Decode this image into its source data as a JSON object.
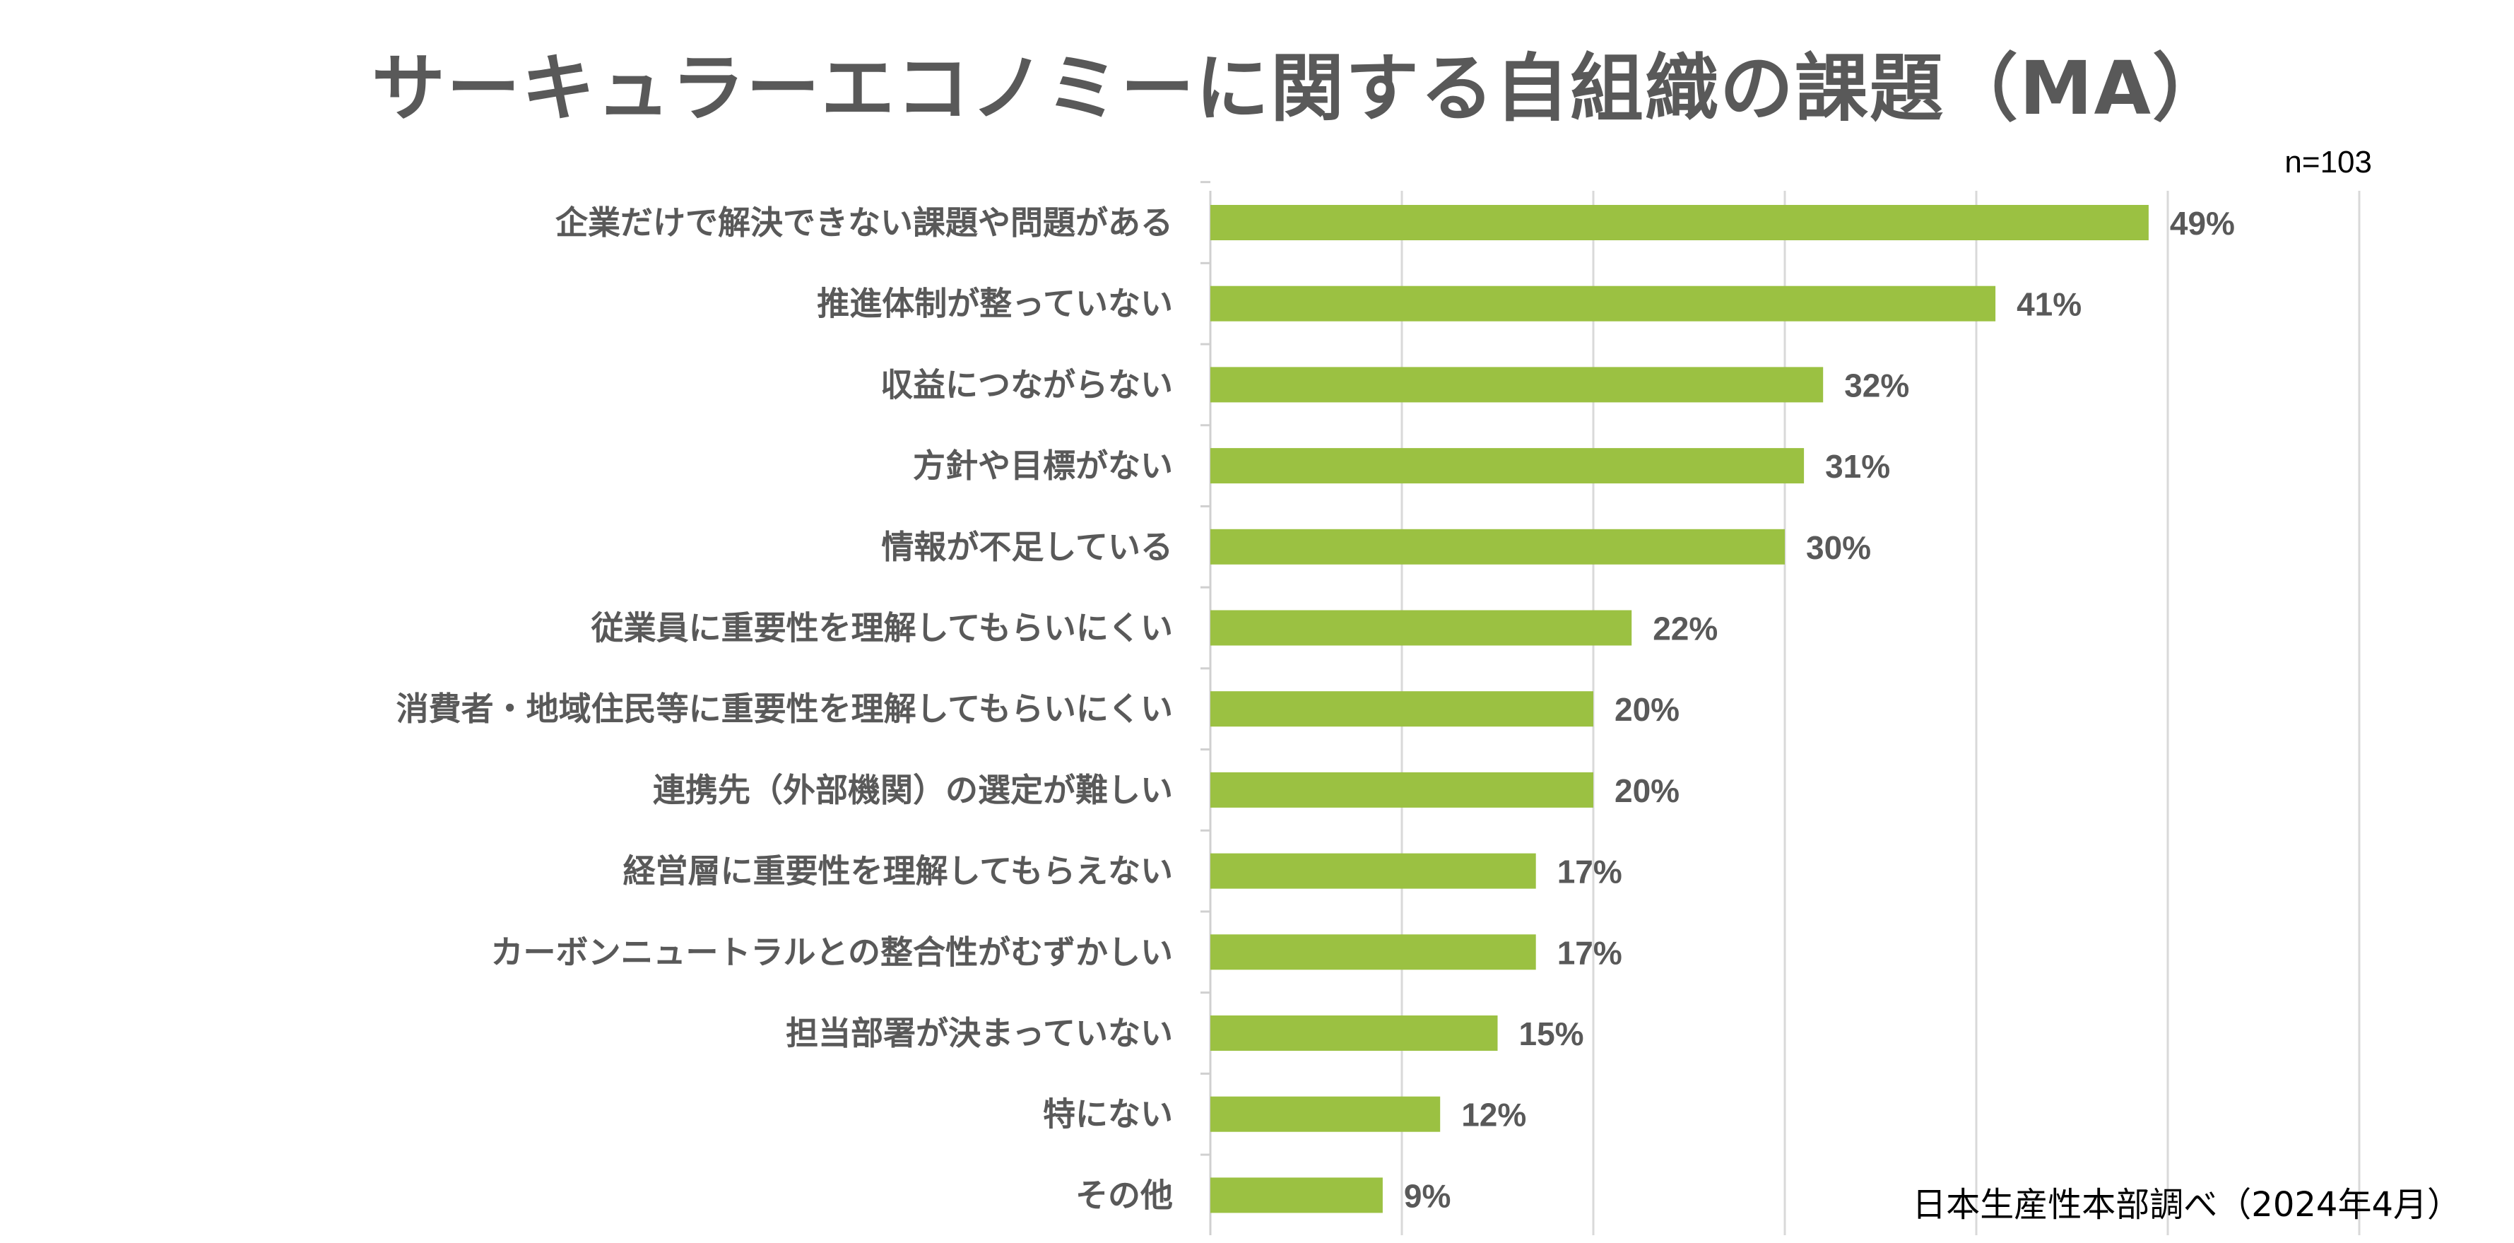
{
  "chart_data": {
    "type": "bar",
    "orientation": "horizontal",
    "title": "サーキュラーエコノミーに関する自組織の課題（MA）",
    "sample_size": "n=103",
    "source": "日本生産性本部調べ（2024年4月）",
    "categories": [
      "企業だけで解決できない課題や問題がある",
      "推進体制が整っていない",
      "収益につながらない",
      "方針や目標がない",
      "情報が不足している",
      "従業員に重要性を理解してもらいにくい",
      "消費者・地域住民等に重要性を理解してもらいにくい",
      "連携先（外部機関）の選定が難しい",
      "経営層に重要性を理解してもらえない",
      "カーボンニュートラルとの整合性がむずかしい",
      "担当部署が決まっていない",
      "特にない",
      "その他"
    ],
    "values": [
      49,
      41,
      32,
      31,
      30,
      22,
      20,
      20,
      17,
      17,
      15,
      12,
      9
    ],
    "value_labels": [
      "49%",
      "41%",
      "32%",
      "31%",
      "30%",
      "22%",
      "20%",
      "20%",
      "17%",
      "17%",
      "15%",
      "12%",
      "9%"
    ],
    "xlim": [
      0,
      60
    ],
    "grid_step": 10,
    "grid": true,
    "bar_color": "#9bc142"
  }
}
